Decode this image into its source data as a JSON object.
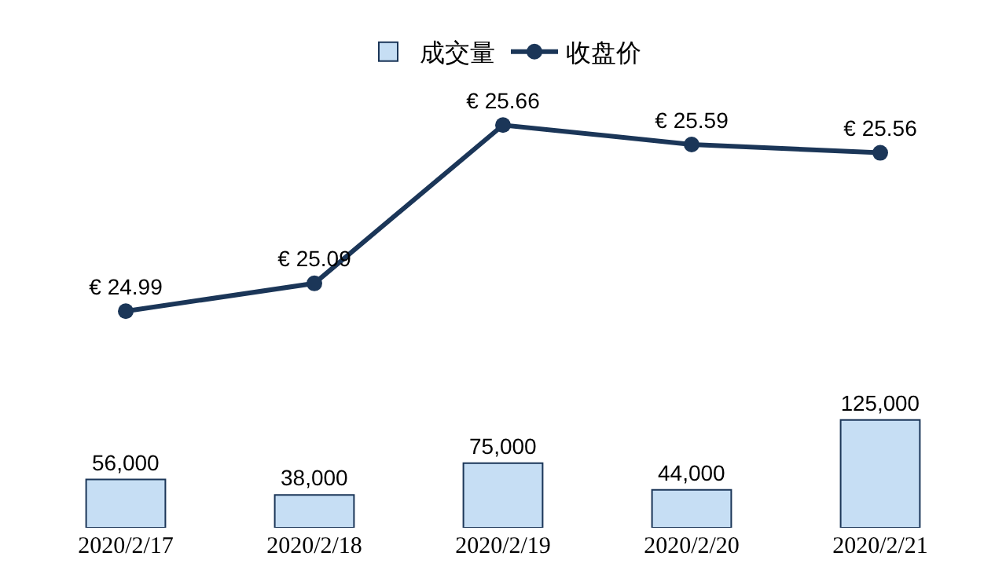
{
  "chart_data": [
    {
      "type": "line",
      "categories": [
        "2020/2/17",
        "2020/2/18",
        "2020/2/19",
        "2020/2/20",
        "2020/2/21"
      ],
      "tick_labels": false,
      "legend": "top",
      "marker": "circle",
      "series": [
        {
          "name": "收盘价",
          "color": "#1b3658",
          "values": [
            24.99,
            25.09,
            25.66,
            25.59,
            25.56
          ],
          "value_labels": [
            "€ 24.99",
            "€ 25.09",
            "€ 25.66",
            "€ 25.59",
            "€ 25.56"
          ]
        }
      ]
    },
    {
      "type": "bar",
      "categories": [
        "2020/2/17",
        "2020/2/18",
        "2020/2/19",
        "2020/2/20",
        "2020/2/21"
      ],
      "tick_labels": "x",
      "legend": "top",
      "series": [
        {
          "name": "成交量",
          "color": "#c6def4",
          "values": [
            56000,
            38000,
            75000,
            44000,
            125000
          ],
          "value_labels": [
            "56,000",
            "38,000",
            "75,000",
            "44,000",
            "125,000"
          ]
        }
      ]
    }
  ]
}
